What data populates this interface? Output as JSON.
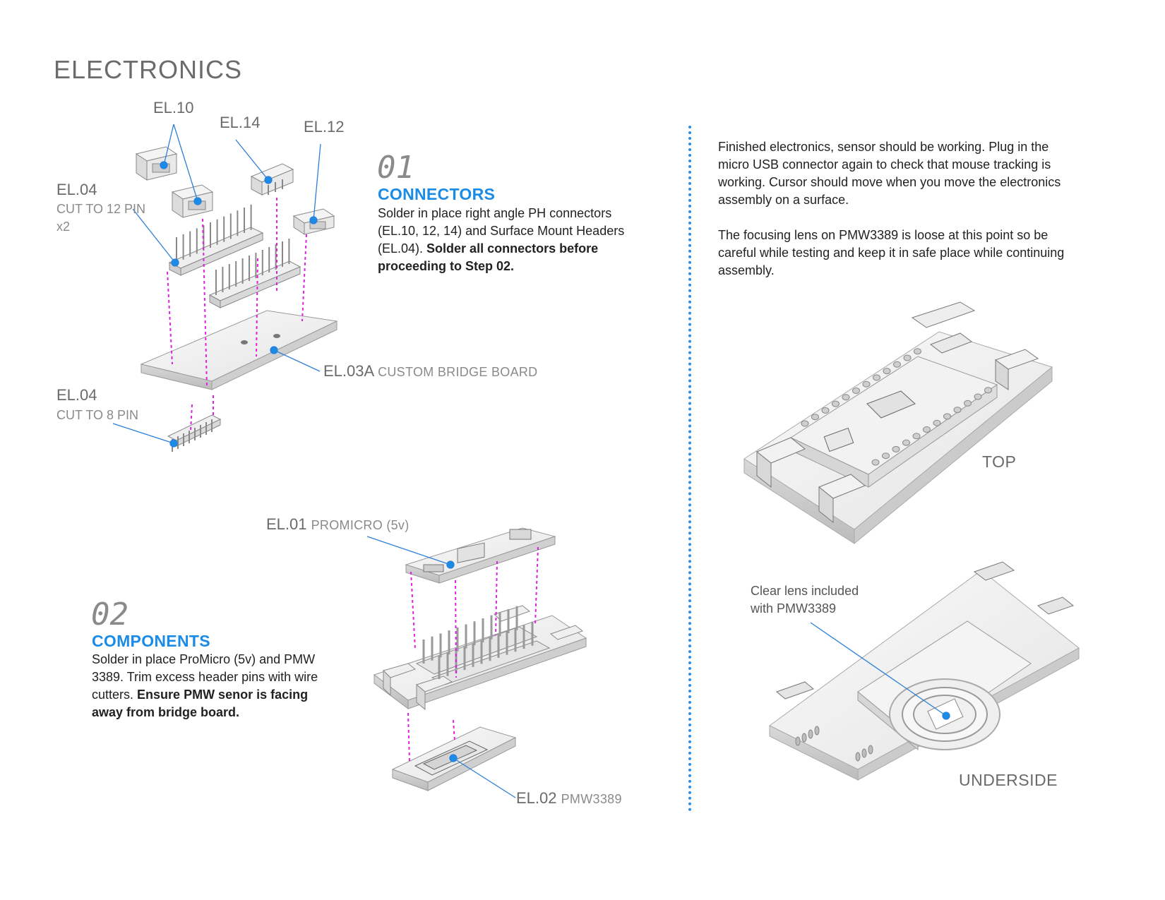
{
  "page": {
    "title": "ELECTRONICS"
  },
  "labels": {
    "el10": "EL.10",
    "el14": "EL.14",
    "el12": "EL.12",
    "el04_top": "EL.04",
    "el04_top_sub1": "CUT TO 12 PIN",
    "el04_top_sub2": "x2",
    "el03a": "EL.03A",
    "el03a_sub": "CUSTOM BRIDGE BOARD",
    "el04_bottom": "EL.04",
    "el04_bottom_sub": "CUT TO 8 PIN",
    "el01": "EL.01",
    "el01_sub": "PROMICRO (5v)",
    "el02": "EL.02",
    "el02_sub": "PMW3389"
  },
  "step1": {
    "number": "01",
    "title": "CONNECTORS",
    "text": "Solder in place right angle PH connectors (EL.10, 12, 14) and Surface Mount Headers (EL.04).",
    "bold": "Solder all connectors before proceeding to Step 02."
  },
  "step2": {
    "number": "02",
    "title": "COMPONENTS",
    "text": "Solder in place ProMicro (5v) and PMW 3389. Trim excess header pins with wire cutters.",
    "bold": "Ensure PMW senor is facing away from bridge board."
  },
  "right": {
    "para1": "Finished electronics, sensor should be working. Plug in the micro USB connector again to check that mouse tracking is working. Cursor should move when you move the electronics assembly on a surface.",
    "para2": "The focusing lens on PMW3389 is loose at this point so be careful while testing and keep it in safe place while continuing assembly.",
    "top_label": "TOP",
    "underside_label": "UNDERSIDE",
    "lens_note_1": "Clear lens included",
    "lens_note_2": "with PMW3389"
  },
  "colors": {
    "accent": "#1a8ce8",
    "guide": "#e020e0",
    "line": "#2b7fd8"
  }
}
